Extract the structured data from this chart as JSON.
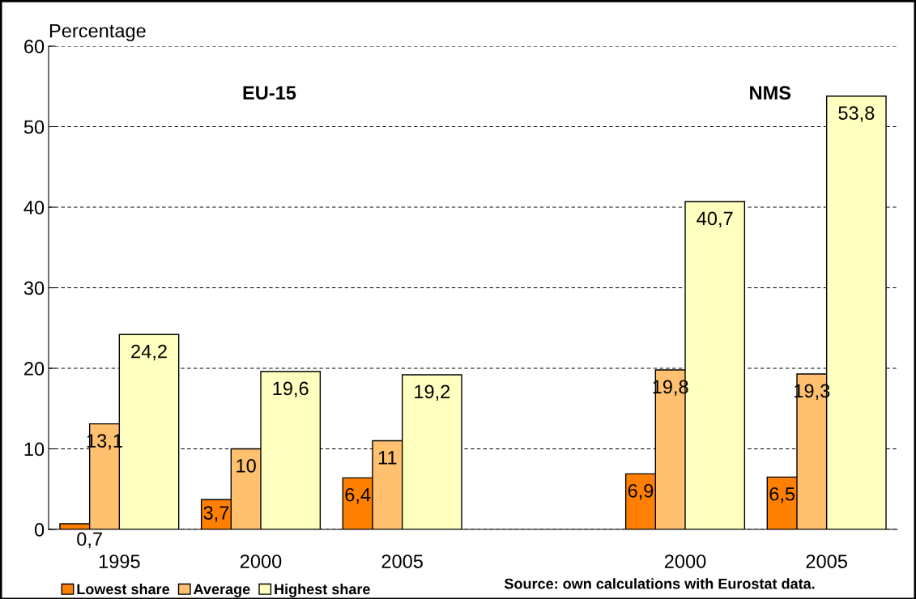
{
  "chart_data": {
    "type": "bar",
    "ylabel": "Percentage",
    "categories": [
      "1995",
      "2000",
      "2005",
      null,
      "2000",
      "2005"
    ],
    "series": [
      {
        "name": "Lowest share",
        "color": "#ff8000",
        "values": [
          0.7,
          3.7,
          6.4,
          null,
          6.9,
          6.5
        ],
        "value_labels": [
          "0,7",
          "3,7",
          "6,4",
          null,
          "6,9",
          "6,5"
        ]
      },
      {
        "name": "Average",
        "color": "#ffc070",
        "values": [
          13.1,
          10,
          11,
          null,
          19.8,
          19.3
        ],
        "value_labels": [
          "13,1",
          "10",
          "11",
          null,
          "19,8",
          "19,3"
        ]
      },
      {
        "name": "Highest share",
        "color": "#ffffc0",
        "values": [
          24.2,
          19.6,
          19.2,
          null,
          40.7,
          53.8
        ],
        "value_labels": [
          "24,2",
          "19,6",
          "19,2",
          null,
          "40,7",
          "53,8"
        ]
      }
    ],
    "ylim": [
      0,
      60
    ],
    "yticks": [
      0,
      10,
      20,
      30,
      40,
      50,
      60
    ],
    "grid": "y",
    "legend": "bottom",
    "annotations": [
      "EU-15",
      "NMS",
      "Source: own calculations with Eurostat data."
    ]
  }
}
